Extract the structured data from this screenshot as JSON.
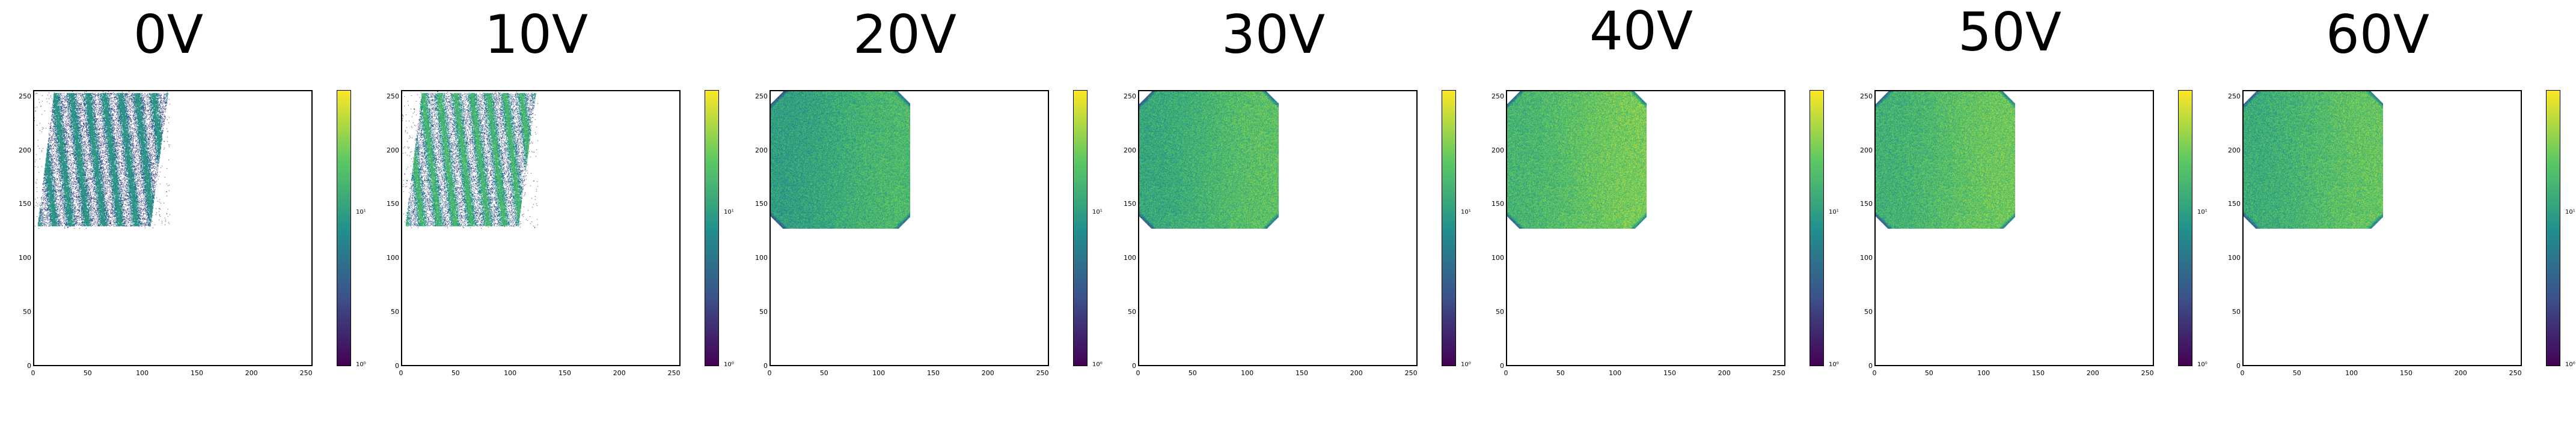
{
  "colormap": [
    "#440154",
    "#3b528b",
    "#21918c",
    "#5ec962",
    "#fde725"
  ],
  "chart_data": [
    {
      "type": "heatmap",
      "title": "0V",
      "x_ticks": [
        "0",
        "50",
        "100",
        "150",
        "200",
        "250"
      ],
      "y_ticks": [
        "0",
        "50",
        "100",
        "150",
        "200",
        "250"
      ],
      "xlim": [
        0,
        256
      ],
      "ylim": [
        0,
        256
      ],
      "colorbar_ticks": [
        "10¹",
        "10⁰"
      ],
      "pattern": "stripes",
      "mean_level": 0.38
    },
    {
      "type": "heatmap",
      "title": "10V",
      "x_ticks": [
        "0",
        "50",
        "100",
        "150",
        "200",
        "250"
      ],
      "y_ticks": [
        "0",
        "50",
        "100",
        "150",
        "200",
        "250"
      ],
      "xlim": [
        0,
        256
      ],
      "ylim": [
        0,
        256
      ],
      "colorbar_ticks": [
        "10¹",
        "10⁰"
      ],
      "pattern": "stripes",
      "mean_level": 0.48
    },
    {
      "type": "heatmap",
      "title": "20V",
      "x_ticks": [
        "0",
        "50",
        "100",
        "150",
        "200",
        "250"
      ],
      "y_ticks": [
        "0",
        "50",
        "100",
        "150",
        "200",
        "250"
      ],
      "xlim": [
        0,
        256
      ],
      "ylim": [
        0,
        256
      ],
      "colorbar_ticks": [
        "10¹",
        "10⁰"
      ],
      "pattern": "uniform",
      "mean_level": 0.62
    },
    {
      "type": "heatmap",
      "title": "30V",
      "x_ticks": [
        "0",
        "50",
        "100",
        "150",
        "200",
        "250"
      ],
      "y_ticks": [
        "0",
        "50",
        "100",
        "150",
        "200",
        "250"
      ],
      "xlim": [
        0,
        256
      ],
      "ylim": [
        0,
        256
      ],
      "colorbar_ticks": [
        "10¹",
        "10⁰"
      ],
      "pattern": "uniform",
      "mean_level": 0.66
    },
    {
      "type": "heatmap",
      "title": "40V",
      "x_ticks": [
        "0",
        "50",
        "100",
        "150",
        "200",
        "250"
      ],
      "y_ticks": [
        "0",
        "50",
        "100",
        "150",
        "200",
        "250"
      ],
      "xlim": [
        0,
        256
      ],
      "ylim": [
        0,
        256
      ],
      "colorbar_ticks": [
        "10¹",
        "10⁰"
      ],
      "pattern": "uniform",
      "mean_level": 0.72
    },
    {
      "type": "heatmap",
      "title": "50V",
      "x_ticks": [
        "0",
        "50",
        "100",
        "150",
        "200",
        "250"
      ],
      "y_ticks": [
        "0",
        "50",
        "100",
        "150",
        "200",
        "250"
      ],
      "xlim": [
        0,
        256
      ],
      "ylim": [
        0,
        256
      ],
      "colorbar_ticks": [
        "10¹",
        "10⁰"
      ],
      "pattern": "uniform",
      "mean_level": 0.7
    },
    {
      "type": "heatmap",
      "title": "60V",
      "x_ticks": [
        "0",
        "50",
        "100",
        "150",
        "200",
        "250"
      ],
      "y_ticks": [
        "0",
        "50",
        "100",
        "150",
        "200",
        "250"
      ],
      "xlim": [
        0,
        256
      ],
      "ylim": [
        0,
        256
      ],
      "colorbar_ticks": [
        "10¹",
        "10⁰"
      ],
      "pattern": "uniform",
      "mean_level": 0.68
    }
  ]
}
